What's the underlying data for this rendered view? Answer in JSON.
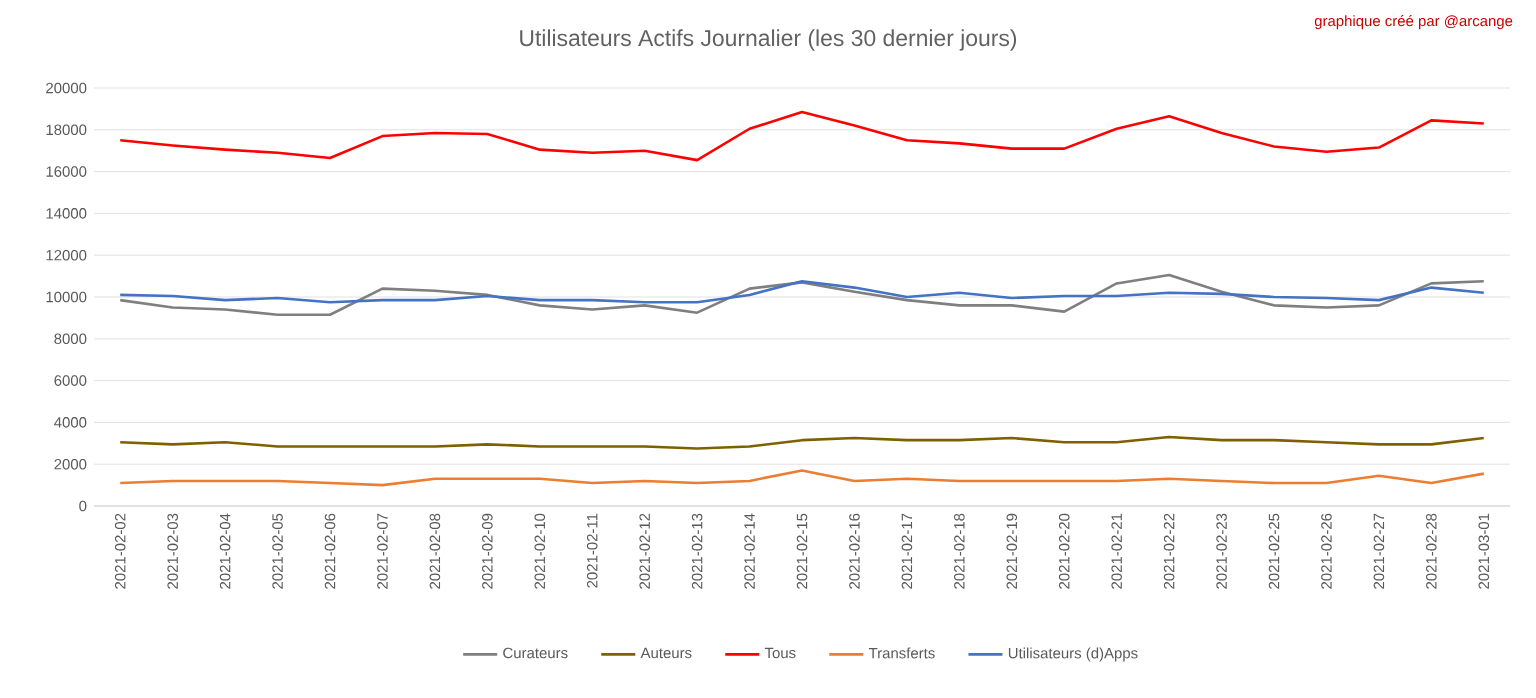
{
  "chart_data": {
    "type": "line",
    "title": "Utilisateurs Actifs Journalier (les 30 dernier jours)",
    "annotations": [
      "graphique créé par @arcange"
    ],
    "categories": [
      "2021-02-02",
      "2021-02-03",
      "2021-02-04",
      "2021-02-05",
      "2021-02-06",
      "2021-02-07",
      "2021-02-08",
      "2021-02-09",
      "2021-02-10",
      "2021-02-11",
      "2021-02-12",
      "2021-02-13",
      "2021-02-14",
      "2021-02-15",
      "2021-02-16",
      "2021-02-17",
      "2021-02-18",
      "2021-02-19",
      "2021-02-20",
      "2021-02-21",
      "2021-02-22",
      "2021-02-23",
      "2021-02-25",
      "2021-02-26",
      "2021-02-27",
      "2021-02-28",
      "2021-03-01"
    ],
    "series": [
      {
        "name": "Curateurs",
        "color": "#7f7f7f",
        "values": [
          9850,
          9500,
          9400,
          9150,
          9150,
          10400,
          10300,
          10100,
          9600,
          9400,
          9600,
          9250,
          10400,
          10700,
          10250,
          9850,
          9600,
          9600,
          9300,
          10650,
          11050,
          10250,
          9600,
          9500,
          9600,
          10650,
          10750
        ]
      },
      {
        "name": "Auteurs",
        "color": "#7f6000",
        "values": [
          3050,
          2950,
          3050,
          2850,
          2850,
          2850,
          2850,
          2950,
          2850,
          2850,
          2850,
          2750,
          2850,
          3150,
          3250,
          3150,
          3150,
          3250,
          3050,
          3050,
          3300,
          3150,
          3150,
          3050,
          2950,
          2950,
          3250
        ]
      },
      {
        "name": "Tous",
        "color": "#ff0000",
        "values": [
          17500,
          17250,
          17050,
          16900,
          16650,
          17700,
          17850,
          17800,
          17050,
          16900,
          17000,
          16550,
          18050,
          18850,
          18200,
          17500,
          17350,
          17100,
          17100,
          18050,
          18650,
          17850,
          17200,
          16950,
          17150,
          18450,
          18300
        ]
      },
      {
        "name": "Transferts",
        "color": "#ed7d31",
        "values": [
          1100,
          1200,
          1200,
          1200,
          1100,
          1000,
          1300,
          1300,
          1300,
          1100,
          1200,
          1100,
          1200,
          1700,
          1200,
          1300,
          1200,
          1200,
          1200,
          1200,
          1300,
          1200,
          1100,
          1100,
          1450,
          1100,
          1550
        ]
      },
      {
        "name": "Utilisateurs (d)Apps",
        "color": "#4472c4",
        "values": [
          10100,
          10050,
          9850,
          9950,
          9750,
          9850,
          9850,
          10050,
          9850,
          9850,
          9750,
          9750,
          10100,
          10750,
          10450,
          10000,
          10200,
          9950,
          10050,
          10050,
          10200,
          10150,
          10000,
          9950,
          9850,
          10450,
          10200
        ]
      }
    ],
    "ylim": [
      0,
      20000
    ],
    "yticks": [
      0,
      2000,
      4000,
      6000,
      8000,
      10000,
      12000,
      14000,
      16000,
      18000,
      20000
    ],
    "grid": "y",
    "legend": "bottom",
    "marker": "none",
    "line_style": "solid"
  }
}
